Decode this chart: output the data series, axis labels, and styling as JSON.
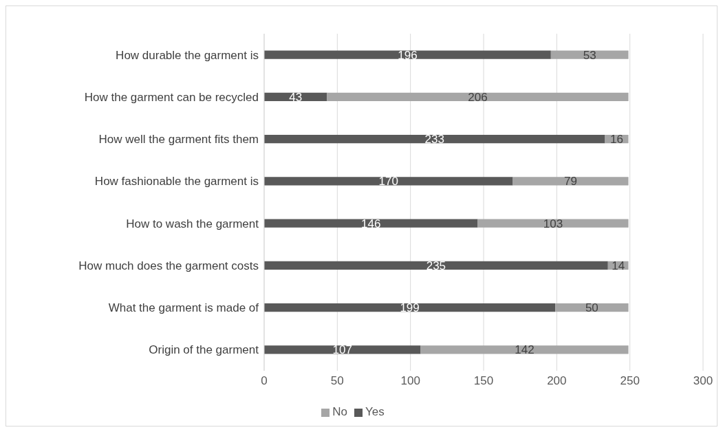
{
  "chart_data": {
    "type": "bar",
    "orientation": "horizontal",
    "stacked": true,
    "categories": [
      "How durable the garment is",
      "How the garment can be recycled",
      "How well the garment fits them",
      "How fashionable the garment is",
      "How to wash the garment",
      "How much does the garment  costs",
      "What the garment is made of",
      "Origin of the garment"
    ],
    "series": [
      {
        "name": "Yes",
        "color": "#595959",
        "values": [
          196,
          43,
          233,
          170,
          146,
          235,
          199,
          107
        ]
      },
      {
        "name": "No",
        "color": "#a6a6a6",
        "values": [
          53,
          206,
          16,
          79,
          103,
          14,
          50,
          142
        ]
      }
    ],
    "xlim": [
      0,
      300
    ],
    "xticks": [
      0,
      50,
      100,
      150,
      200,
      250,
      300
    ],
    "grid": "x",
    "legend": "bottom",
    "data_labels": true
  }
}
